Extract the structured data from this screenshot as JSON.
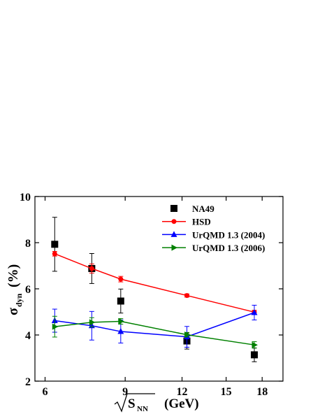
{
  "chart_data": {
    "type": "line",
    "y_label": "σ",
    "y_label_sub": "dyn",
    "y_label_unit": "(%)",
    "x_label_var": "S",
    "x_label_sub": "NN",
    "x_label_unit": "(GeV)",
    "x_scale": "log",
    "xlim": [
      5.7,
      20
    ],
    "xticks": [
      6,
      9,
      12,
      15,
      18
    ],
    "ylim": [
      2,
      10
    ],
    "yticks": [
      2,
      4,
      6,
      8,
      10
    ],
    "legend": "upper right",
    "x": [
      6.3,
      7.6,
      8.8,
      12.3,
      17.3
    ],
    "series": [
      {
        "name": "NA49",
        "color": "#000000",
        "marker": "square",
        "line": false,
        "values": [
          7.93,
          6.88,
          5.47,
          3.74,
          3.14
        ],
        "errors": [
          1.17,
          0.65,
          0.52,
          0.35,
          0.3
        ]
      },
      {
        "name": "HSD",
        "color": "#ff0000",
        "marker": "circle",
        "line": true,
        "values": [
          7.52,
          6.88,
          6.42,
          5.71,
          4.99
        ],
        "errors": [
          0.1,
          0.2,
          0.12,
          0.07,
          0.08
        ]
      },
      {
        "name": "UrQMD 1.3 (2004)",
        "color": "#0000ff",
        "marker": "triangle-up",
        "line": true,
        "values": [
          4.62,
          4.4,
          4.15,
          3.92,
          4.97
        ],
        "errors": [
          0.5,
          0.62,
          0.5,
          0.45,
          0.32
        ]
      },
      {
        "name": "UrQMD 1.3 (2006)",
        "color": "#008000",
        "marker": "triangle-right",
        "line": true,
        "values": [
          4.36,
          4.55,
          4.59,
          4.01,
          3.57
        ],
        "errors": [
          0.45,
          0.2,
          0.12,
          0.1,
          0.14
        ]
      }
    ]
  }
}
